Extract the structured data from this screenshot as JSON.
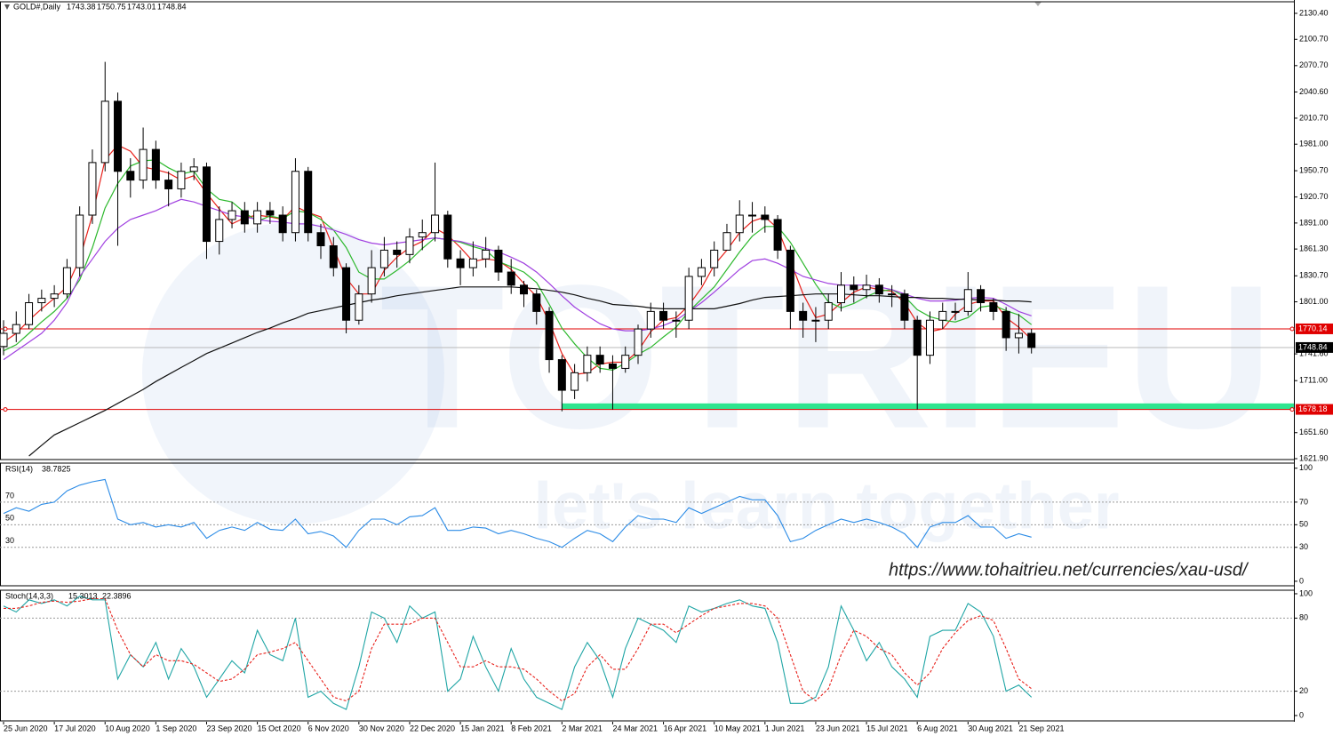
{
  "watermark": {
    "brand": "TOTRIEU",
    "slogan": "let's learn together"
  },
  "url": "https://www.tohaitrieu.net/currencies/xau-usd/",
  "chart_data": [
    {
      "type": "candlestick",
      "title": "GOLD#,Daily",
      "quote": [
        1743.38,
        1750.75,
        1743.01,
        1748.84
      ],
      "categories": [
        "25 Jun 2020",
        null,
        null,
        null,
        "17 Jul 2020",
        null,
        null,
        null,
        "10 Aug 2020",
        null,
        null,
        null,
        "1 Sep 2020",
        null,
        null,
        null,
        "23 Sep 2020",
        null,
        null,
        null,
        "15 Oct 2020",
        null,
        null,
        null,
        "6 Nov 2020",
        null,
        null,
        null,
        "30 Nov 2020",
        null,
        null,
        null,
        "22 Dec 2020",
        null,
        null,
        null,
        "15 Jan 2021",
        null,
        null,
        null,
        "8 Feb 2021",
        null,
        null,
        null,
        "2 Mar 2021",
        null,
        null,
        null,
        "24 Mar 2021",
        null,
        null,
        null,
        "16 Apr 2021",
        null,
        null,
        null,
        "10 May 2021",
        null,
        null,
        null,
        "1 Jun 2021",
        null,
        null,
        null,
        "23 Jun 2021",
        null,
        null,
        null,
        "15 Jul 2021",
        null,
        null,
        null,
        "6 Aug 2021",
        null,
        null,
        null,
        "30 Aug 2021",
        null,
        null,
        null,
        "21 Sep 2021",
        null
      ],
      "open": [
        1750,
        1765,
        1775,
        1800,
        1805,
        1810,
        1840,
        1900,
        1960,
        2030,
        1950,
        1940,
        1975,
        1940,
        1930,
        1950,
        1955,
        1870,
        1895,
        1905,
        1890,
        1905,
        1900,
        1880,
        1950,
        1880,
        1865,
        1840,
        1780,
        1810,
        1840,
        1860,
        1855,
        1875,
        1880,
        1900,
        1850,
        1840,
        1850,
        1860,
        1835,
        1820,
        1810,
        1790,
        1735,
        1700,
        1720,
        1740,
        1730,
        1725,
        1740,
        1770,
        1790,
        1780,
        1780,
        1830,
        1840,
        1860,
        1880,
        1900,
        1900,
        1895,
        1860,
        1790,
        1780,
        1780,
        1800,
        1820,
        1815,
        1820,
        1810,
        1810,
        1780,
        1740,
        1780,
        1790,
        1790,
        1815,
        1800,
        1790,
        1760,
        1765
      ],
      "high": [
        1780,
        1790,
        1810,
        1815,
        1820,
        1850,
        1910,
        1975,
        2075,
        2040,
        1965,
        2000,
        1985,
        1950,
        1960,
        1965,
        1960,
        1910,
        1915,
        1915,
        1915,
        1915,
        1910,
        1965,
        1955,
        1890,
        1875,
        1845,
        1820,
        1860,
        1875,
        1870,
        1885,
        1895,
        1960,
        1905,
        1860,
        1870,
        1875,
        1865,
        1850,
        1825,
        1815,
        1795,
        1740,
        1730,
        1750,
        1750,
        1740,
        1750,
        1775,
        1800,
        1800,
        1790,
        1840,
        1850,
        1870,
        1890,
        1917,
        1915,
        1910,
        1900,
        1865,
        1800,
        1795,
        1810,
        1835,
        1830,
        1832,
        1828,
        1820,
        1815,
        1785,
        1790,
        1800,
        1800,
        1835,
        1820,
        1805,
        1795,
        1787,
        1770
      ],
      "low": [
        1740,
        1755,
        1770,
        1790,
        1795,
        1805,
        1830,
        1890,
        1950,
        1865,
        1920,
        1930,
        1930,
        1910,
        1920,
        1940,
        1850,
        1855,
        1885,
        1880,
        1880,
        1890,
        1870,
        1870,
        1870,
        1850,
        1830,
        1765,
        1775,
        1800,
        1830,
        1840,
        1845,
        1860,
        1870,
        1840,
        1820,
        1830,
        1840,
        1825,
        1810,
        1795,
        1775,
        1720,
        1676,
        1690,
        1710,
        1720,
        1678,
        1720,
        1730,
        1760,
        1770,
        1760,
        1770,
        1820,
        1830,
        1860,
        1870,
        1880,
        1880,
        1850,
        1770,
        1760,
        1755,
        1770,
        1790,
        1800,
        1805,
        1800,
        1795,
        1770,
        1678,
        1730,
        1770,
        1780,
        1785,
        1790,
        1780,
        1745,
        1742,
        1742
      ],
      "close": [
        1765,
        1775,
        1800,
        1805,
        1810,
        1840,
        1900,
        1960,
        2030,
        1950,
        1940,
        1975,
        1940,
        1930,
        1950,
        1955,
        1870,
        1895,
        1905,
        1890,
        1905,
        1900,
        1880,
        1950,
        1880,
        1865,
        1840,
        1780,
        1810,
        1840,
        1860,
        1855,
        1875,
        1880,
        1900,
        1850,
        1840,
        1850,
        1860,
        1835,
        1820,
        1810,
        1790,
        1735,
        1700,
        1720,
        1740,
        1730,
        1725,
        1740,
        1770,
        1790,
        1780,
        1780,
        1830,
        1840,
        1860,
        1880,
        1900,
        1900,
        1895,
        1860,
        1790,
        1780,
        1780,
        1800,
        1820,
        1815,
        1820,
        1810,
        1810,
        1780,
        1740,
        1780,
        1790,
        1790,
        1815,
        1800,
        1790,
        1760,
        1765,
        1748.84
      ],
      "overlays": [
        {
          "color": "#e8201a",
          "values": [
            1755,
            1765,
            1780,
            1793,
            1805,
            1818,
            1850,
            1900,
            1963,
            1980,
            1973,
            1955,
            1952,
            1948,
            1940,
            1945,
            1925,
            1907,
            1890,
            1897,
            1900,
            1898,
            1895,
            1910,
            1903,
            1898,
            1862,
            1828,
            1810,
            1810,
            1837,
            1852,
            1863,
            1870,
            1885,
            1877,
            1863,
            1847,
            1850,
            1848,
            1838,
            1822,
            1807,
            1778,
            1742,
            1718,
            1720,
            1730,
            1732,
            1732,
            1745,
            1767,
            1780,
            1783,
            1797,
            1817,
            1843,
            1860,
            1880,
            1893,
            1898,
            1885,
            1848,
            1810,
            1783,
            1787,
            1800,
            1812,
            1818,
            1815,
            1813,
            1800,
            1777,
            1767,
            1770,
            1787,
            1798,
            1802,
            1802,
            1783,
            1772,
            1758
          ]
        },
        {
          "color": "#2db82d",
          "values": [
            1745,
            1752,
            1765,
            1778,
            1790,
            1805,
            1826,
            1863,
            1908,
            1936,
            1956,
            1962,
            1963,
            1954,
            1947,
            1950,
            1930,
            1918,
            1915,
            1903,
            1893,
            1899,
            1896,
            1905,
            1903,
            1895,
            1883,
            1863,
            1835,
            1827,
            1827,
            1837,
            1848,
            1862,
            1874,
            1872,
            1869,
            1864,
            1860,
            1847,
            1841,
            1835,
            1823,
            1798,
            1771,
            1753,
            1737,
            1725,
            1723,
            1731,
            1741,
            1749,
            1761,
            1772,
            1790,
            1804,
            1818,
            1838,
            1858,
            1876,
            1887,
            1887,
            1869,
            1845,
            1821,
            1801,
            1794,
            1799,
            1807,
            1813,
            1815,
            1807,
            1792,
            1784,
            1780,
            1778,
            1783,
            1795,
            1797,
            1791,
            1786,
            1775
          ]
        },
        {
          "color": "#a040e0",
          "values": [
            1735,
            1745,
            1755,
            1765,
            1780,
            1800,
            1830,
            1850,
            1870,
            1885,
            1895,
            1900,
            1905,
            1912,
            1918,
            1915,
            1910,
            1905,
            1900,
            1898,
            1895,
            1893,
            1892,
            1890,
            1890,
            1887,
            1883,
            1878,
            1872,
            1868,
            1866,
            1868,
            1870,
            1872,
            1874,
            1872,
            1870,
            1866,
            1862,
            1858,
            1852,
            1845,
            1835,
            1822,
            1808,
            1795,
            1785,
            1776,
            1770,
            1768,
            1768,
            1770,
            1774,
            1780,
            1790,
            1800,
            1812,
            1825,
            1838,
            1848,
            1850,
            1845,
            1838,
            1830,
            1826,
            1822,
            1820,
            1820,
            1820,
            1818,
            1815,
            1810,
            1805,
            1802,
            1802,
            1803,
            1805,
            1806,
            1805,
            1798,
            1790,
            1785
          ]
        },
        {
          "color": "#111111",
          "values": [
            null,
            null,
            1625,
            1637,
            1649,
            1656,
            1663,
            1670,
            1677,
            1685,
            1693,
            1701,
            1710,
            1718,
            1726,
            1734,
            1742,
            1748,
            1754,
            1760,
            1766,
            1771,
            1777,
            1782,
            1788,
            1791,
            1794,
            1797,
            1800,
            1803,
            1805,
            1808,
            1810,
            1812,
            1814,
            1816,
            1818,
            1818,
            1818,
            1818,
            1818,
            1817,
            1816,
            1814,
            1812,
            1809,
            1805,
            1802,
            1798,
            1797,
            1796,
            1794,
            1793,
            1793,
            1793,
            1793,
            1793,
            1796,
            1799,
            1803,
            1806,
            1807,
            1808,
            1809,
            1810,
            1810,
            1810,
            1809,
            1808,
            1808,
            1807,
            1806,
            1806,
            1805,
            1805,
            1804,
            1804,
            1803,
            1803,
            1802,
            1802,
            1801
          ]
        }
      ],
      "levels": [
        {
          "value": 1770.14,
          "color": "#e00000"
        },
        {
          "value": 1678.18,
          "color": "#e00000"
        }
      ],
      "current_price": 1748.84,
      "zone": {
        "low": 1678,
        "high": 1685,
        "start": "2 Mar 2021",
        "color": "#2ee58f"
      },
      "ylim": [
        1620.9,
        2143.6
      ],
      "yticks": [
        {
          "value": 1621.9,
          "label": "1621.90"
        },
        {
          "value": 1651.6,
          "label": "1651.60"
        },
        {
          "value": 1711,
          "label": "1711.00"
        },
        {
          "value": 1741.6,
          "label": "1741.60"
        },
        {
          "value": 1801,
          "label": "1801.00"
        },
        {
          "value": 1830.7,
          "label": "1830.70"
        },
        {
          "value": 1861.3,
          "label": "1861.30"
        },
        {
          "value": 1891,
          "label": "1891.00"
        },
        {
          "value": 1920.7,
          "label": "1920.70"
        },
        {
          "value": 1950.7,
          "label": "1950.70"
        },
        {
          "value": 1981,
          "label": "1981.00"
        },
        {
          "value": 2010.7,
          "label": "2010.70"
        },
        {
          "value": 2040.6,
          "label": "2040.60"
        },
        {
          "value": 2070.7,
          "label": "2070.70"
        },
        {
          "value": 2100.7,
          "label": "2100.70"
        },
        {
          "value": 2130.4,
          "label": "2130.40"
        }
      ]
    },
    {
      "type": "line",
      "title": "RSI(14)",
      "last": [
        38.7825
      ],
      "series": [
        {
          "color": "#2b8be6",
          "values": [
            60,
            65,
            62,
            68,
            70,
            80,
            85,
            88,
            90,
            55,
            50,
            52,
            48,
            50,
            48,
            52,
            38,
            45,
            48,
            45,
            52,
            46,
            45,
            55,
            42,
            44,
            40,
            30,
            45,
            55,
            55,
            50,
            57,
            58,
            65,
            45,
            45,
            48,
            47,
            42,
            45,
            42,
            38,
            35,
            30,
            38,
            45,
            42,
            35,
            48,
            58,
            55,
            55,
            52,
            65,
            60,
            65,
            70,
            75,
            72,
            72,
            58,
            35,
            38,
            45,
            50,
            55,
            52,
            55,
            52,
            48,
            42,
            30,
            48,
            52,
            52,
            58,
            48,
            48,
            38,
            42,
            39
          ]
        }
      ],
      "levels": [
        70,
        50,
        30
      ],
      "level_labels": true,
      "ylim": [
        -4,
        104.5
      ],
      "yticks": [
        0,
        30,
        50,
        70,
        100
      ]
    },
    {
      "type": "line",
      "title": "Stoch(14,3,3)",
      "last": [
        15.3013,
        22.3896
      ],
      "series": [
        {
          "color": "#1fa5a5",
          "dash": false,
          "values": [
            90,
            85,
            95,
            92,
            95,
            90,
            98,
            95,
            95,
            30,
            50,
            40,
            60,
            30,
            55,
            40,
            15,
            30,
            45,
            35,
            70,
            50,
            45,
            80,
            15,
            20,
            10,
            5,
            40,
            85,
            80,
            60,
            90,
            80,
            85,
            20,
            30,
            65,
            40,
            20,
            55,
            30,
            15,
            10,
            5,
            40,
            60,
            45,
            15,
            55,
            80,
            75,
            70,
            60,
            90,
            85,
            88,
            92,
            95,
            90,
            88,
            60,
            10,
            10,
            15,
            40,
            90,
            70,
            45,
            60,
            40,
            30,
            15,
            65,
            70,
            70,
            92,
            85,
            65,
            20,
            25,
            15
          ]
        },
        {
          "color": "#e8201a",
          "dash": true,
          "values": [
            88,
            88,
            90,
            93,
            94,
            93,
            94,
            96,
            96,
            70,
            50,
            40,
            50,
            45,
            45,
            42,
            35,
            28,
            30,
            38,
            50,
            52,
            55,
            60,
            45,
            30,
            15,
            12,
            20,
            55,
            75,
            75,
            75,
            80,
            80,
            60,
            40,
            40,
            45,
            40,
            40,
            38,
            30,
            20,
            12,
            18,
            40,
            50,
            38,
            38,
            55,
            75,
            75,
            68,
            75,
            82,
            88,
            90,
            92,
            92,
            90,
            80,
            50,
            20,
            12,
            22,
            50,
            70,
            65,
            55,
            50,
            35,
            25,
            35,
            55,
            68,
            78,
            82,
            78,
            55,
            30,
            22
          ]
        }
      ],
      "levels": [
        80,
        20
      ],
      "level_labels": false,
      "ylim": [
        -4.4,
        102.9
      ],
      "yticks": [
        0,
        20,
        80,
        100
      ]
    }
  ]
}
